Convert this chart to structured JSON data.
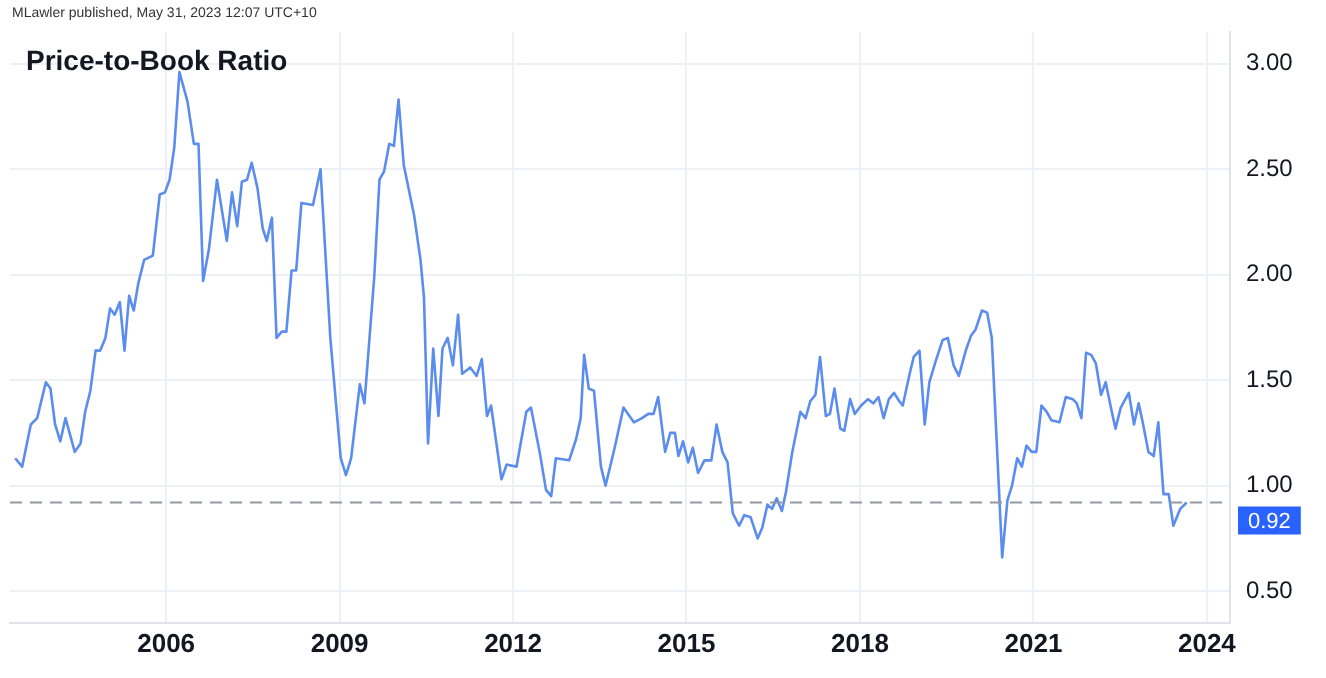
{
  "chart_data": {
    "type": "line",
    "title": "Price-to-Book Ratio",
    "annotations": [
      "MLawler published, May 31, 2023 12:07 UTC+10"
    ],
    "xlim": [
      2003.3,
      2024.4
    ],
    "xticks": [
      2006,
      2009,
      2012,
      2015,
      2018,
      2021,
      2024
    ],
    "ylim": [
      0.35,
      3.15
    ],
    "yticks": [
      {
        "value": 0.5,
        "label": "0.50"
      },
      {
        "value": 1,
        "label": "1.00"
      },
      {
        "value": 1.5,
        "label": "1.50"
      },
      {
        "value": 2,
        "label": "2.00"
      },
      {
        "value": 2.5,
        "label": "2.50"
      },
      {
        "value": 3,
        "label": "3.00"
      }
    ],
    "grid": true,
    "marker": "none",
    "line_style": "solid",
    "ref_lines": [
      {
        "axis": "y",
        "value": 0.92,
        "label": "0.92",
        "color": "#9598a1",
        "line_style": "dashed"
      }
    ],
    "series": [
      {
        "color": "#5b8def",
        "x": [
          2003.39,
          2003.51,
          2003.66,
          2003.77,
          2003.92,
          2004.0,
          2004.08,
          2004.17,
          2004.26,
          2004.42,
          2004.52,
          2004.6,
          2004.69,
          2004.78,
          2004.86,
          2004.95,
          2005.03,
          2005.11,
          2005.2,
          2005.28,
          2005.36,
          2005.44,
          2005.52,
          2005.62,
          2005.77,
          2005.89,
          2005.98,
          2006.06,
          2006.14,
          2006.23,
          2006.37,
          2006.48,
          2006.56,
          2006.64,
          2006.74,
          2006.88,
          2007.05,
          2007.14,
          2007.23,
          2007.31,
          2007.4,
          2007.48,
          2007.58,
          2007.67,
          2007.74,
          2007.83,
          2007.91,
          2008.0,
          2008.08,
          2008.17,
          2008.25,
          2008.34,
          2008.54,
          2008.67,
          2008.84,
          2009.02,
          2009.11,
          2009.2,
          2009.35,
          2009.43,
          2009.6,
          2009.69,
          2009.77,
          2009.86,
          2009.94,
          2010.02,
          2010.11,
          2010.29,
          2010.4,
          2010.46,
          2010.53,
          2010.62,
          2010.71,
          2010.78,
          2010.87,
          2010.96,
          2011.05,
          2011.12,
          2011.26,
          2011.37,
          2011.46,
          2011.55,
          2011.62,
          2011.8,
          2011.89,
          2012.06,
          2012.23,
          2012.31,
          2012.46,
          2012.57,
          2012.66,
          2012.74,
          2012.97,
          2013.09,
          2013.17,
          2013.23,
          2013.31,
          2013.4,
          2013.52,
          2013.6,
          2013.75,
          2013.91,
          2014.09,
          2014.23,
          2014.34,
          2014.43,
          2014.51,
          2014.63,
          2014.72,
          2014.8,
          2014.86,
          2014.94,
          2015.03,
          2015.11,
          2015.2,
          2015.31,
          2015.43,
          2015.52,
          2015.62,
          2015.71,
          2015.8,
          2015.91,
          2016.0,
          2016.11,
          2016.23,
          2016.31,
          2016.4,
          2016.48,
          2016.56,
          2016.65,
          2016.72,
          2016.83,
          2016.97,
          2017.06,
          2017.14,
          2017.23,
          2017.31,
          2017.41,
          2017.48,
          2017.56,
          2017.66,
          2017.73,
          2017.83,
          2017.91,
          2018.02,
          2018.14,
          2018.23,
          2018.32,
          2018.41,
          2018.5,
          2018.59,
          2018.68,
          2018.74,
          2018.86,
          2018.93,
          2019.03,
          2019.12,
          2019.2,
          2019.31,
          2019.43,
          2019.52,
          2019.62,
          2019.71,
          2019.83,
          2019.92,
          2020.0,
          2020.11,
          2020.2,
          2020.28,
          2020.46,
          2020.55,
          2020.63,
          2020.72,
          2020.8,
          2020.88,
          2020.97,
          2021.05,
          2021.14,
          2021.23,
          2021.31,
          2021.45,
          2021.56,
          2021.68,
          2021.75,
          2021.83,
          2021.91,
          2022.0,
          2022.08,
          2022.17,
          2022.25,
          2022.34,
          2022.42,
          2022.51,
          2022.65,
          2022.74,
          2022.82,
          2022.89,
          2022.99,
          2023.08,
          2023.16,
          2023.25,
          2023.34,
          2023.42,
          2023.54,
          2023.65
        ],
        "values": [
          1.13,
          1.09,
          1.29,
          1.32,
          1.49,
          1.46,
          1.29,
          1.21,
          1.32,
          1.16,
          1.2,
          1.35,
          1.45,
          1.64,
          1.64,
          1.7,
          1.84,
          1.81,
          1.87,
          1.64,
          1.9,
          1.83,
          1.96,
          2.07,
          2.09,
          2.38,
          2.39,
          2.45,
          2.6,
          2.96,
          2.82,
          2.62,
          2.62,
          1.97,
          2.12,
          2.45,
          2.16,
          2.39,
          2.23,
          2.44,
          2.45,
          2.53,
          2.41,
          2.22,
          2.16,
          2.27,
          1.7,
          1.73,
          1.73,
          2.02,
          2.02,
          2.34,
          2.33,
          2.5,
          1.7,
          1.13,
          1.05,
          1.13,
          1.48,
          1.39,
          1.99,
          2.45,
          2.49,
          2.62,
          2.61,
          2.83,
          2.52,
          2.28,
          2.07,
          1.89,
          1.2,
          1.65,
          1.33,
          1.65,
          1.7,
          1.57,
          1.81,
          1.53,
          1.56,
          1.52,
          1.6,
          1.33,
          1.38,
          1.03,
          1.1,
          1.09,
          1.35,
          1.37,
          1.16,
          0.98,
          0.95,
          1.13,
          1.12,
          1.22,
          1.32,
          1.62,
          1.46,
          1.45,
          1.09,
          1.0,
          1.17,
          1.37,
          1.3,
          1.32,
          1.34,
          1.34,
          1.42,
          1.16,
          1.25,
          1.25,
          1.14,
          1.21,
          1.11,
          1.18,
          1.06,
          1.12,
          1.12,
          1.29,
          1.16,
          1.11,
          0.87,
          0.81,
          0.86,
          0.85,
          0.75,
          0.8,
          0.91,
          0.89,
          0.94,
          0.88,
          0.97,
          1.16,
          1.35,
          1.32,
          1.4,
          1.43,
          1.61,
          1.33,
          1.34,
          1.46,
          1.27,
          1.26,
          1.41,
          1.34,
          1.38,
          1.41,
          1.39,
          1.42,
          1.32,
          1.41,
          1.44,
          1.4,
          1.38,
          1.53,
          1.61,
          1.64,
          1.29,
          1.49,
          1.59,
          1.69,
          1.7,
          1.57,
          1.52,
          1.64,
          1.71,
          1.74,
          1.83,
          1.82,
          1.7,
          0.66,
          0.93,
          1.0,
          1.13,
          1.09,
          1.19,
          1.16,
          1.16,
          1.38,
          1.35,
          1.31,
          1.3,
          1.42,
          1.41,
          1.39,
          1.32,
          1.63,
          1.62,
          1.58,
          1.43,
          1.49,
          1.37,
          1.27,
          1.37,
          1.44,
          1.29,
          1.39,
          1.3,
          1.16,
          1.14,
          1.3,
          0.96,
          0.96,
          0.81,
          0.89,
          0.92
        ]
      }
    ]
  }
}
